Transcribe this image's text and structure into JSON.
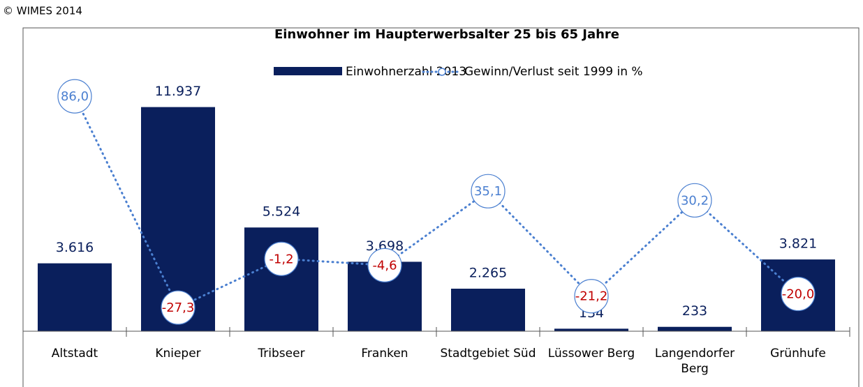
{
  "chart_data": {
    "type": "bar_line",
    "copyright": "© WIMES 2014",
    "title": "Einwohner im Haupterwerbsalter 25 bis 65 Jahre",
    "categories": [
      "Altstadt",
      "Knieper",
      "Tribseer",
      "Franken",
      "Stadtgebiet Süd",
      "Lüssower Berg",
      "Langendorfer Berg",
      "Grünhufe"
    ],
    "series": [
      {
        "name": "Einwohnerzahl 2013",
        "type": "bar",
        "color": "#0a1f5c",
        "values": [
          3616,
          11937,
          5524,
          3698,
          2265,
          134,
          233,
          3821
        ],
        "value_labels": [
          "3.616",
          "11.937",
          "5.524",
          "3.698",
          "2.265",
          "134",
          "233",
          "3.821"
        ]
      },
      {
        "name": "Gewinn/Verlust seit 1999 in %",
        "type": "line",
        "axis": "y2",
        "color": "#4a7fd0",
        "values": [
          86.0,
          -27.3,
          -1.2,
          -4.6,
          35.1,
          -21.2,
          30.2,
          -20.0
        ],
        "value_labels": [
          "86,0",
          "-27,3",
          "-1,2",
          "-4,6",
          "35,1",
          "-21,2",
          "30,2",
          "-20,0"
        ],
        "label_colors": {
          "positive": "#4a7fd0",
          "negative": "#c00000"
        }
      }
    ],
    "ylim": [
      0,
      14000
    ],
    "y2lim": [
      -40,
      101
    ],
    "legend": "top"
  }
}
